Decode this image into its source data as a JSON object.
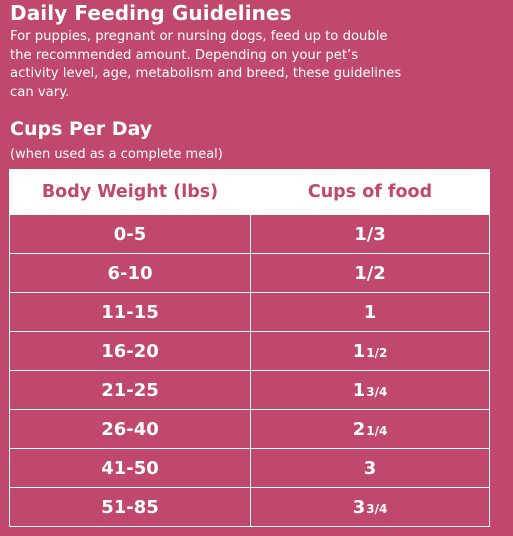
{
  "header": {
    "title": "Daily Feeding Guidelines",
    "intro": "For puppies, pregnant or nursing dogs, feed up to double the recommended amount. Depending on your pet’s activity level, age, metabolism and breed, these guidelines can vary."
  },
  "section": {
    "title": "Cups Per Day",
    "note": "(when used as a complete meal)"
  },
  "table": {
    "headers": [
      "Body Weight (lbs)",
      "Cups of food"
    ],
    "rows": [
      {
        "weight": "0-5",
        "cups_whole": "1/3",
        "cups_frac": ""
      },
      {
        "weight": "6-10",
        "cups_whole": "1/2",
        "cups_frac": ""
      },
      {
        "weight": "11-15",
        "cups_whole": "1",
        "cups_frac": ""
      },
      {
        "weight": "16-20",
        "cups_whole": "1",
        "cups_frac": "1/2"
      },
      {
        "weight": "21-25",
        "cups_whole": "1",
        "cups_frac": "3/4"
      },
      {
        "weight": "26-40",
        "cups_whole": "2",
        "cups_frac": "1/4"
      },
      {
        "weight": "41-50",
        "cups_whole": "3",
        "cups_frac": ""
      },
      {
        "weight": "51-85",
        "cups_whole": "3",
        "cups_frac": "3/4"
      }
    ]
  },
  "colors": {
    "background": "#c0486c",
    "text": "#ffffff",
    "header_text": "#c0486c"
  }
}
